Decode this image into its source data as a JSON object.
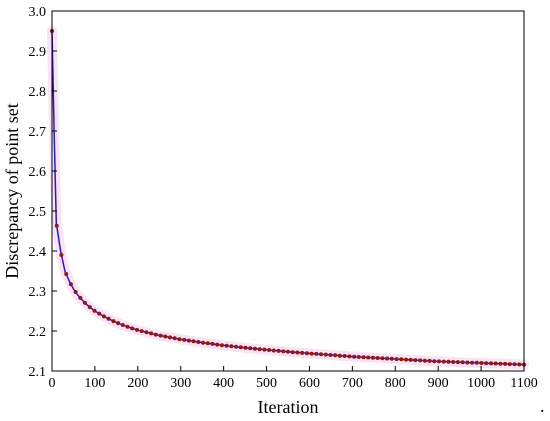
{
  "chart_data": {
    "type": "line",
    "xlabel": "Iteration",
    "ylabel": "Discrepancy of point set",
    "xlim": [
      0,
      1100
    ],
    "ylim": [
      2.1,
      3.0
    ],
    "x_ticks": [
      0,
      100,
      200,
      300,
      400,
      500,
      600,
      700,
      800,
      900,
      1000,
      1100
    ],
    "y_ticks": [
      2.1,
      2.2,
      2.3,
      2.4,
      2.5,
      2.6,
      2.7,
      2.8,
      2.9,
      3.0
    ],
    "grid": false,
    "legend": "none",
    "trailing_mark": ".",
    "series": [
      {
        "line_color": "#1f1fc0",
        "marker_color": "#8b1a1a",
        "band_color": "#f0a8e0",
        "points": [
          [
            0,
            2.95
          ],
          [
            5,
            2.7
          ],
          [
            10,
            2.47
          ],
          [
            20,
            2.4
          ],
          [
            30,
            2.35
          ],
          [
            40,
            2.325
          ],
          [
            50,
            2.305
          ],
          [
            60,
            2.29
          ],
          [
            70,
            2.278
          ],
          [
            80,
            2.267
          ],
          [
            90,
            2.258
          ],
          [
            100,
            2.25
          ],
          [
            120,
            2.237
          ],
          [
            140,
            2.226
          ],
          [
            160,
            2.217
          ],
          [
            180,
            2.209
          ],
          [
            200,
            2.202
          ],
          [
            250,
            2.189
          ],
          [
            300,
            2.179
          ],
          [
            350,
            2.171
          ],
          [
            400,
            2.164
          ],
          [
            450,
            2.158
          ],
          [
            500,
            2.153
          ],
          [
            550,
            2.148
          ],
          [
            600,
            2.144
          ],
          [
            650,
            2.14
          ],
          [
            700,
            2.136
          ],
          [
            750,
            2.133
          ],
          [
            800,
            2.13
          ],
          [
            850,
            2.127
          ],
          [
            900,
            2.124
          ],
          [
            950,
            2.122
          ],
          [
            1000,
            2.12
          ],
          [
            1050,
            2.118
          ],
          [
            1100,
            2.116
          ]
        ]
      }
    ]
  }
}
